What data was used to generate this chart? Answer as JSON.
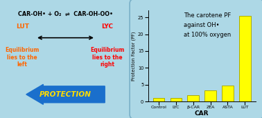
{
  "categories": [
    "Control",
    "LYC",
    "β-CAR",
    "ZEA",
    "ASTA",
    "LUT"
  ],
  "values": [
    1.0,
    1.1,
    1.8,
    3.2,
    4.8,
    25.5
  ],
  "bar_color": "#ffff00",
  "bar_edgecolor": "#aaaa00",
  "bg_color": "#add8e6",
  "panel_bg": "#add8e6",
  "ylabel": "Protection Factor (PF)",
  "xlabel": "CAR",
  "annotation_line1": "The carotene PF",
  "annotation_line2": "against OH•",
  "annotation_line3": "at 100% oxygen",
  "ylim": [
    0,
    27
  ],
  "yticks": [
    0,
    5,
    10,
    15,
    20,
    25
  ],
  "equation_text": "CAR-OH• + O₂  ⇌  CAR-OH-OO•",
  "lut_label": "LUT",
  "lyc_label": "LYC",
  "lut_eq": "Equilibrium\nlies to the\nleft",
  "lyc_eq": "Equilibrium\nlies to the\nright",
  "protection_text": "PROTECTION",
  "arrow_color": "#1a6fcc",
  "lut_color": "#ff6600",
  "lyc_color": "#ff0000",
  "protection_text_color": "#ffdd00",
  "border_color": "#7ab0c8",
  "figsize": [
    3.78,
    1.71
  ],
  "dpi": 100
}
